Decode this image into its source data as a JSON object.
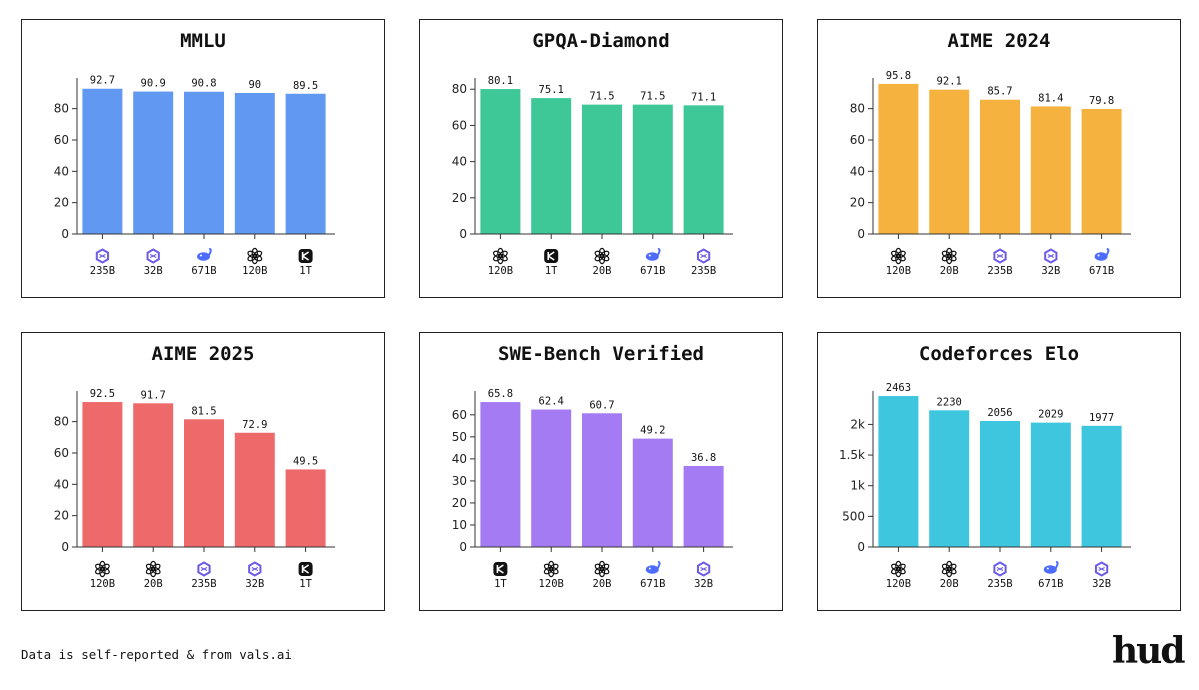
{
  "footer": {
    "note": "Data is self-reported & from vals.ai"
  },
  "brand": {
    "logo_text": "hud"
  },
  "icon_colors": {
    "openai": "#111111",
    "kimi": "#111111",
    "deepseek": "#4d6bfe",
    "qwen": "#6b5ce7"
  },
  "chart_data": [
    {
      "type": "bar",
      "title": "MMLU",
      "color": "#6199f2",
      "categories": [
        "235B",
        "32B",
        "671B",
        "120B",
        "1T"
      ],
      "icons": [
        "qwen-icon",
        "qwen-icon",
        "deepseek-icon",
        "openai-icon",
        "kimi-icon"
      ],
      "values": [
        92.7,
        90.9,
        90.8,
        90,
        89.5
      ],
      "value_labels": [
        "92.7",
        "90.9",
        "90.8",
        "90",
        "89.5"
      ],
      "ylim": [
        0,
        97
      ],
      "yticks": [
        0,
        20,
        40,
        60,
        80
      ],
      "ytick_labels": [
        "0",
        "20",
        "40",
        "60",
        "80"
      ]
    },
    {
      "type": "bar",
      "title": "GPQA-Diamond",
      "color": "#3ec898",
      "categories": [
        "120B",
        "1T",
        "20B",
        "671B",
        "235B"
      ],
      "icons": [
        "openai-icon",
        "kimi-icon",
        "openai-icon",
        "deepseek-icon",
        "qwen-icon"
      ],
      "values": [
        80.1,
        75.1,
        71.5,
        71.5,
        71.1
      ],
      "value_labels": [
        "80.1",
        "75.1",
        "71.5",
        "71.5",
        "71.1"
      ],
      "ylim": [
        0,
        84
      ],
      "yticks": [
        0,
        20,
        40,
        60,
        80
      ],
      "ytick_labels": [
        "0",
        "20",
        "40",
        "60",
        "80"
      ]
    },
    {
      "type": "bar",
      "title": "AIME 2024",
      "color": "#f6b23e",
      "categories": [
        "120B",
        "20B",
        "235B",
        "32B",
        "671B"
      ],
      "icons": [
        "openai-icon",
        "openai-icon",
        "qwen-icon",
        "qwen-icon",
        "deepseek-icon"
      ],
      "values": [
        95.8,
        92.1,
        85.7,
        81.4,
        79.8
      ],
      "value_labels": [
        "95.8",
        "92.1",
        "85.7",
        "81.4",
        "79.8"
      ],
      "ylim": [
        0,
        97
      ],
      "yticks": [
        0,
        20,
        40,
        60,
        80
      ],
      "ytick_labels": [
        "0",
        "20",
        "40",
        "60",
        "80"
      ]
    },
    {
      "type": "bar",
      "title": "AIME 2025",
      "color": "#ee6a6a",
      "categories": [
        "120B",
        "20B",
        "235B",
        "32B",
        "1T"
      ],
      "icons": [
        "openai-icon",
        "openai-icon",
        "qwen-icon",
        "qwen-icon",
        "kimi-icon"
      ],
      "values": [
        92.5,
        91.7,
        81.5,
        72.9,
        49.5
      ],
      "value_labels": [
        "92.5",
        "91.7",
        "81.5",
        "72.9",
        "49.5"
      ],
      "ylim": [
        0,
        97
      ],
      "yticks": [
        0,
        20,
        40,
        60,
        80
      ],
      "ytick_labels": [
        "0",
        "20",
        "40",
        "60",
        "80"
      ]
    },
    {
      "type": "bar",
      "title": "SWE-Bench Verified",
      "color": "#a47bf2",
      "categories": [
        "1T",
        "120B",
        "20B",
        "671B",
        "32B"
      ],
      "icons": [
        "kimi-icon",
        "openai-icon",
        "openai-icon",
        "deepseek-icon",
        "qwen-icon"
      ],
      "values": [
        65.8,
        62.4,
        60.7,
        49.2,
        36.8
      ],
      "value_labels": [
        "65.8",
        "62.4",
        "60.7",
        "49.2",
        "36.8"
      ],
      "ylim": [
        0,
        69
      ],
      "yticks": [
        0,
        10,
        20,
        30,
        40,
        50,
        60
      ],
      "ytick_labels": [
        "0",
        "10",
        "20",
        "30",
        "40",
        "50",
        "60"
      ]
    },
    {
      "type": "bar",
      "title": "Codeforces Elo",
      "color": "#3dc6dd",
      "categories": [
        "120B",
        "20B",
        "235B",
        "671B",
        "32B"
      ],
      "icons": [
        "openai-icon",
        "openai-icon",
        "qwen-icon",
        "deepseek-icon",
        "qwen-icon"
      ],
      "values": [
        2463,
        2230,
        2056,
        2029,
        1977
      ],
      "value_labels": [
        "2463",
        "2230",
        "2056",
        "2029",
        "1977"
      ],
      "ylim": [
        0,
        2480
      ],
      "yticks": [
        0,
        500,
        1000,
        1500,
        2000
      ],
      "ytick_labels": [
        "0",
        "500",
        "1k",
        "1.5k",
        "2k"
      ]
    }
  ]
}
